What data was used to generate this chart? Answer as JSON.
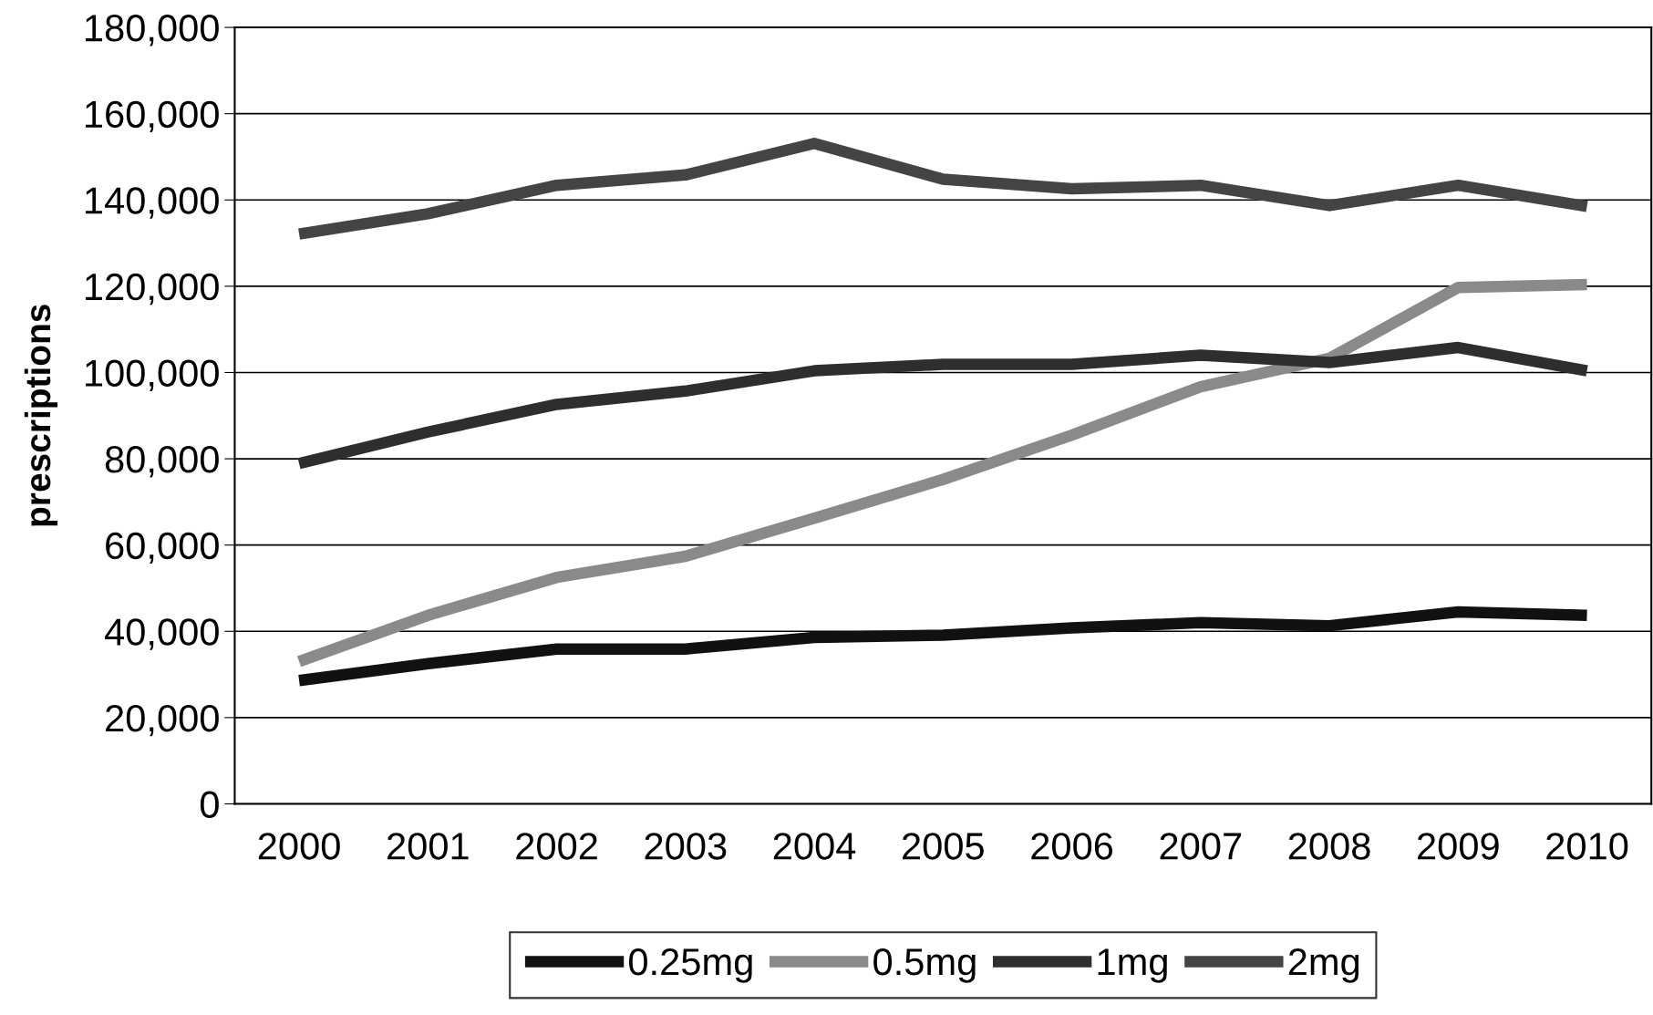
{
  "chart_data": {
    "type": "line",
    "ylabel": "prescriptions",
    "categories": [
      "2000",
      "2001",
      "2002",
      "2003",
      "2004",
      "2005",
      "2006",
      "2007",
      "2008",
      "2009",
      "2010"
    ],
    "series": [
      {
        "name": "0.25mg",
        "color": "#111111",
        "values": [
          28600,
          32500,
          35900,
          35900,
          38600,
          39100,
          40800,
          42000,
          41300,
          44500,
          43700
        ]
      },
      {
        "name": "0.5mg",
        "color": "#8a8a8a",
        "values": [
          33000,
          43700,
          52500,
          57400,
          66200,
          75200,
          85500,
          96700,
          103300,
          119700,
          120400
        ]
      },
      {
        "name": "1mg",
        "color": "#2e2e2e",
        "values": [
          78900,
          86200,
          92600,
          95700,
          100400,
          101900,
          101900,
          104000,
          102300,
          105800,
          100400
        ]
      },
      {
        "name": "2mg",
        "color": "#444444",
        "values": [
          132100,
          136800,
          143400,
          145800,
          153100,
          144800,
          142600,
          143400,
          138700,
          143400,
          138500
        ]
      }
    ],
    "ylim": [
      0,
      180000
    ],
    "yticks": [
      {
        "value": 0,
        "label": "0"
      },
      {
        "value": 20000,
        "label": "20,000"
      },
      {
        "value": 40000,
        "label": "40,000"
      },
      {
        "value": 60000,
        "label": "60,000"
      },
      {
        "value": 80000,
        "label": "80,000"
      },
      {
        "value": 100000,
        "label": "100,000"
      },
      {
        "value": 120000,
        "label": "120,000"
      },
      {
        "value": 140000,
        "label": "140,000"
      },
      {
        "value": 160000,
        "label": "160,000"
      },
      {
        "value": 180000,
        "label": "180,000"
      }
    ],
    "grid": "y",
    "legend": "bottom",
    "marker": "none",
    "line_style": "solid"
  }
}
